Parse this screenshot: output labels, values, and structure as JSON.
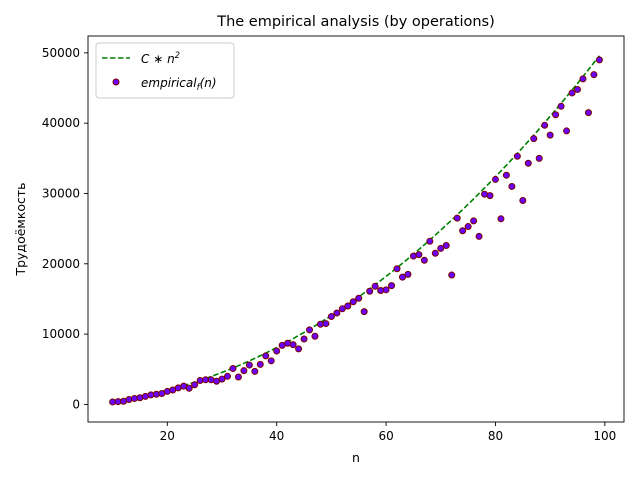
{
  "chart_data": {
    "type": "scatter",
    "title": "The empirical analysis (by operations)",
    "xlabel": "n",
    "ylabel": "Трудоёмкость",
    "xlim": [
      5.5,
      103.5
    ],
    "ylim": [
      -2500,
      52400
    ],
    "xticks": [
      20,
      40,
      60,
      80,
      100
    ],
    "yticks": [
      0,
      10000,
      20000,
      30000,
      40000,
      50000
    ],
    "grid": false,
    "legend_position": "top-left",
    "series": [
      {
        "name": "C * n²",
        "kind": "line",
        "style": "dashed",
        "color": "#008000",
        "c": 5.06,
        "x_range": [
          10,
          99
        ]
      },
      {
        "name": "empirical_f(n)",
        "kind": "scatter",
        "color": "#6a00ff",
        "edge_color": "#7a0000",
        "x": [
          10,
          11,
          12,
          13,
          14,
          15,
          16,
          17,
          18,
          19,
          20,
          21,
          22,
          23,
          24,
          25,
          26,
          27,
          28,
          29,
          30,
          31,
          32,
          33,
          34,
          35,
          36,
          37,
          38,
          39,
          40,
          41,
          42,
          43,
          44,
          45,
          46,
          47,
          48,
          49,
          50,
          51,
          52,
          53,
          54,
          55,
          56,
          57,
          58,
          59,
          60,
          61,
          62,
          63,
          64,
          65,
          66,
          67,
          68,
          69,
          70,
          71,
          72,
          73,
          74,
          75,
          76,
          77,
          78,
          79,
          80,
          81,
          82,
          83,
          84,
          85,
          86,
          87,
          88,
          89,
          90,
          91,
          92,
          93,
          94,
          95,
          96,
          97,
          98,
          99
        ],
        "y": [
          350,
          400,
          450,
          700,
          850,
          950,
          1150,
          1350,
          1450,
          1550,
          1850,
          2050,
          2350,
          2600,
          2300,
          2800,
          3400,
          3500,
          3500,
          3300,
          3600,
          4000,
          5100,
          3900,
          4800,
          5600,
          4700,
          5700,
          6900,
          6200,
          7600,
          8400,
          8700,
          8500,
          7900,
          9300,
          10600,
          9700,
          11400,
          11500,
          12500,
          13000,
          13600,
          14000,
          14600,
          15100,
          13200,
          16100,
          16800,
          16200,
          16300,
          16900,
          19300,
          18100,
          18500,
          21100,
          21300,
          20500,
          23200,
          21500,
          22200,
          22600,
          18400,
          26500,
          24700,
          25300,
          26100,
          23900,
          29900,
          29700,
          32000,
          26400,
          32600,
          31000,
          35300,
          29000,
          34300,
          37800,
          35000,
          39700,
          38300,
          41200,
          42400,
          38900,
          44300,
          44800,
          46300,
          41500,
          46900,
          49000
        ]
      }
    ]
  }
}
